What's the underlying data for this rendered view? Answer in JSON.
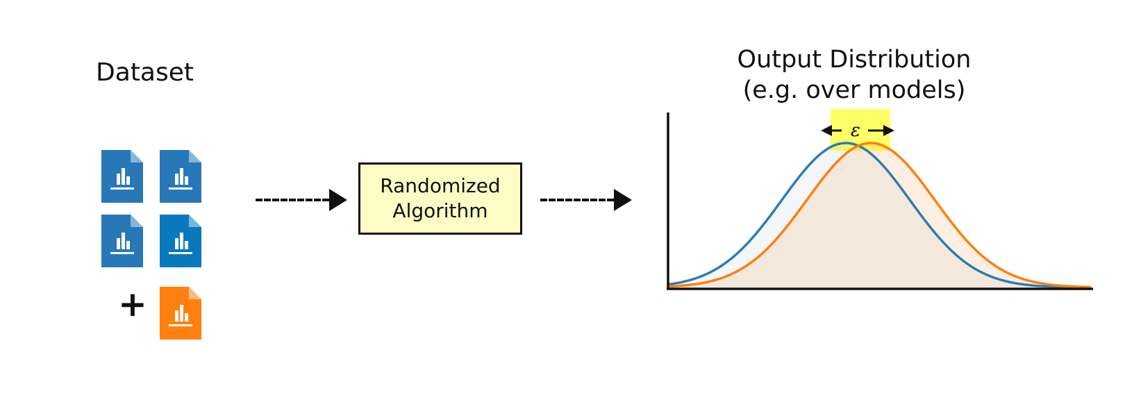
{
  "dataset": {
    "title": "Dataset",
    "plus": "+",
    "documents": [
      {
        "icon": "bar-chart-document-icon",
        "color": "#2878b8"
      },
      {
        "icon": "bar-chart-document-icon",
        "color": "#2878b8"
      },
      {
        "icon": "bar-chart-document-icon",
        "color": "#2878b8"
      },
      {
        "icon": "bar-chart-document-icon",
        "color": "#0a78bc"
      },
      {
        "icon": "bar-chart-document-icon",
        "color": "#ff8010"
      }
    ]
  },
  "algorithm": {
    "line1": "Randomized",
    "line2": "Algorithm",
    "fill": "#fcfcc4"
  },
  "output": {
    "title_line1": "Output Distribution",
    "title_line2": "(e.g. over models)",
    "epsilon": "ε",
    "epsilon_highlight": "#ffff66",
    "curve_colors": {
      "blue": "#2e7cb2",
      "orange": "#ff7f0e"
    }
  }
}
